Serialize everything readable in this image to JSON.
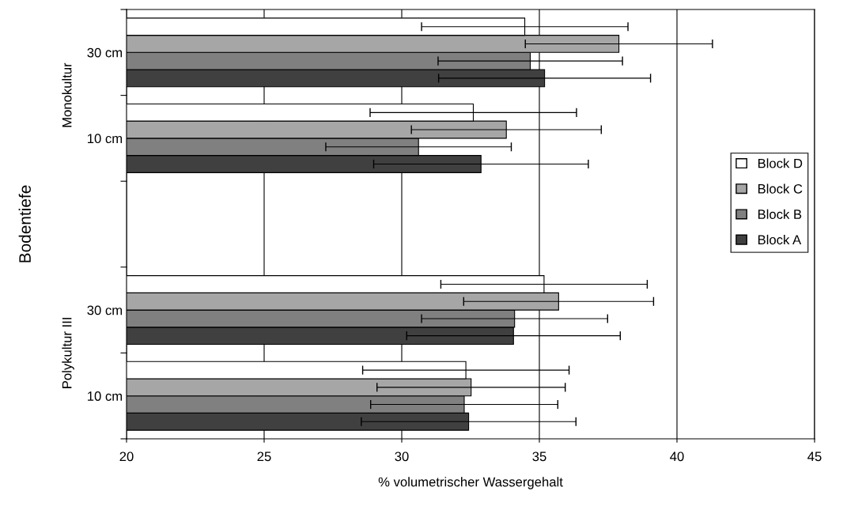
{
  "chart_data": {
    "type": "bar",
    "orientation": "horizontal",
    "categories": [
      "30 cm",
      "10 cm",
      null,
      "30 cm",
      "10 cm"
    ],
    "series": [
      {
        "name": "Block A",
        "color": "#404040",
        "values": [
          35.19,
          32.88,
          null,
          34.06,
          32.43
        ],
        "errors": [
          3.85,
          3.9,
          null,
          3.88,
          3.9
        ]
      },
      {
        "name": "Block B",
        "color": "#808080",
        "values": [
          34.67,
          30.61,
          null,
          34.1,
          32.27
        ],
        "errors": [
          3.35,
          3.37,
          null,
          3.38,
          3.4
        ]
      },
      {
        "name": "Block C",
        "color": "#a6a6a6",
        "values": [
          37.89,
          33.8,
          null,
          35.7,
          32.52
        ],
        "errors": [
          3.4,
          3.45,
          null,
          3.45,
          3.42
        ]
      },
      {
        "name": "Block D",
        "color": "#ffffff",
        "values": [
          34.47,
          32.6,
          null,
          35.17,
          32.33
        ],
        "errors": [
          3.75,
          3.75,
          null,
          3.75,
          3.75
        ]
      }
    ],
    "xlim": [
      20,
      45
    ],
    "xticks": [
      20,
      25,
      30,
      35,
      40,
      45
    ],
    "xlabel": "% volumetrischer Wassergehalt",
    "ylabel": "Bodentiefe",
    "annotations": [
      "Monokultur",
      "Polykultur III"
    ],
    "grid": "x",
    "legend": "right"
  }
}
